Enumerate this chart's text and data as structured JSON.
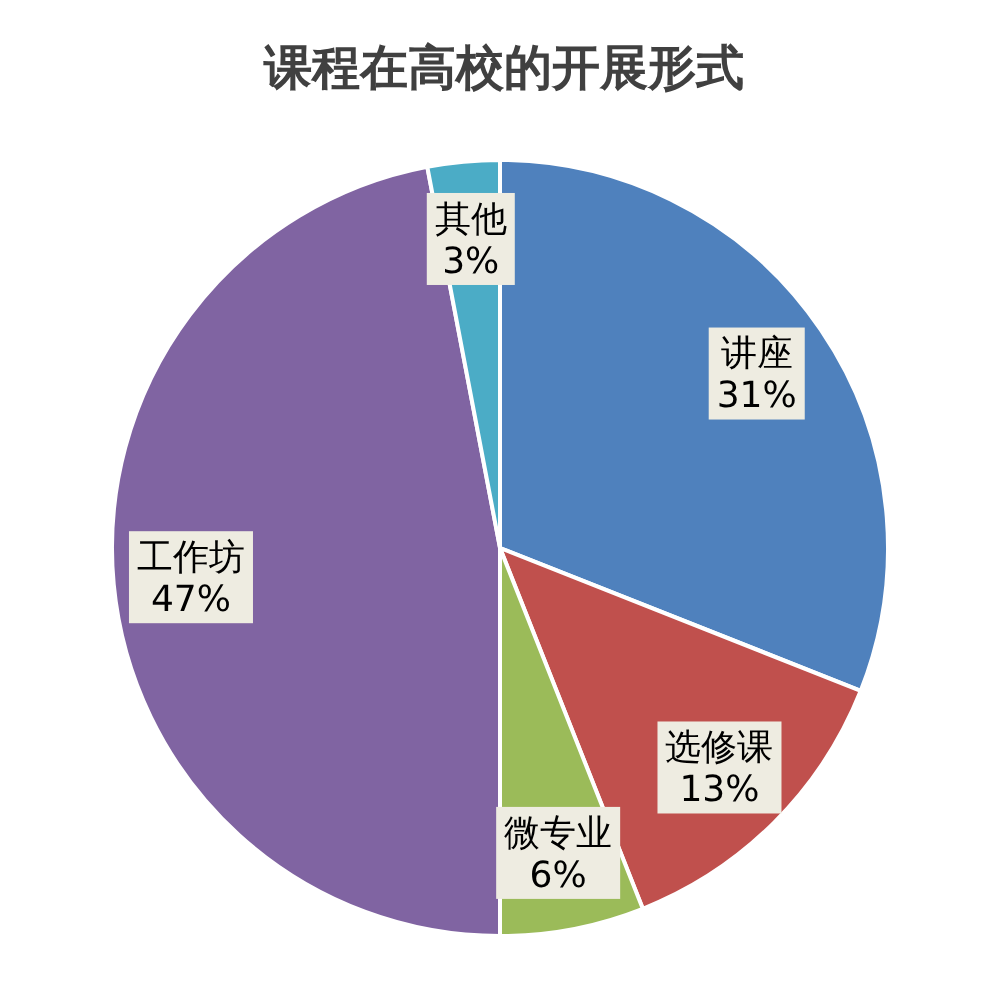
{
  "chart_data": {
    "type": "pie",
    "title": "课程在高校的开展形式",
    "categories": [
      "讲座",
      "选修课",
      "微专业",
      "工作坊",
      "其他"
    ],
    "values": [
      31,
      13,
      6,
      47,
      3
    ],
    "colors": [
      "#4f81bd",
      "#c0504d",
      "#9bbb59",
      "#8064a2",
      "#4bacc6"
    ],
    "value_labels": [
      "31%",
      "13%",
      "6%",
      "47%",
      "3%"
    ]
  }
}
